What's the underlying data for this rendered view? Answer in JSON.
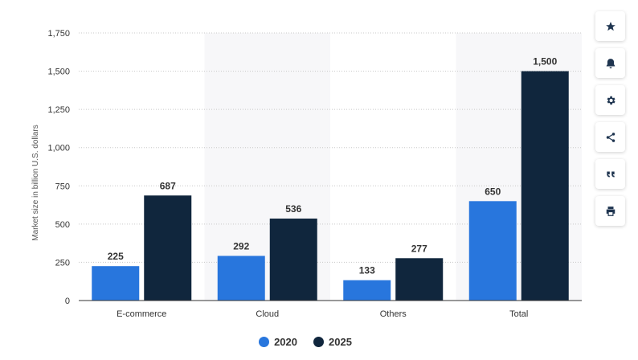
{
  "chart_data": {
    "type": "bar",
    "categories": [
      "E-commerce",
      "Cloud",
      "Others",
      "Total"
    ],
    "series": [
      {
        "name": "2020",
        "values": [
          225,
          292,
          133,
          650
        ],
        "color": "#2876dd"
      },
      {
        "name": "2025",
        "values": [
          687,
          536,
          277,
          1500
        ],
        "color": "#10263d"
      }
    ],
    "data_labels": [
      [
        "225",
        "292",
        "133",
        "650"
      ],
      [
        "687",
        "536",
        "277",
        "1,500"
      ]
    ],
    "ylabel": "Market size in billion U.S. dollars",
    "xlabel": "",
    "ylim": [
      0,
      1750
    ],
    "yticks": [
      0,
      250,
      500,
      750,
      1000,
      1250,
      1500,
      1750
    ],
    "ytick_labels": [
      "0",
      "250",
      "500",
      "750",
      "1,000",
      "1,250",
      "1,500",
      "1,750"
    ],
    "grid": true,
    "legend_position": "bottom-center",
    "alternating_band_color": "#f7f7f9"
  },
  "legend": {
    "items": [
      {
        "label": "2020",
        "color": "#2876dd"
      },
      {
        "label": "2025",
        "color": "#10263d"
      }
    ]
  },
  "toolbar": {
    "buttons": [
      {
        "name": "star-icon"
      },
      {
        "name": "bell-icon"
      },
      {
        "name": "gear-icon"
      },
      {
        "name": "share-icon"
      },
      {
        "name": "quote-icon"
      },
      {
        "name": "print-icon"
      }
    ]
  }
}
